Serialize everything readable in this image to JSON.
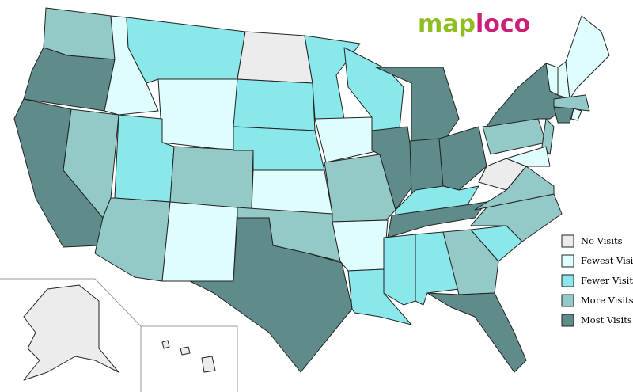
{
  "logo": {
    "part1": "map",
    "part2": "loco"
  },
  "legend": {
    "items": [
      {
        "label": "No Visits",
        "color": "#ececec"
      },
      {
        "label": "Fewest Visits",
        "color": "#e0fdfd"
      },
      {
        "label": "Fewer Visits",
        "color": "#8ae8ea"
      },
      {
        "label": "More Visits",
        "color": "#93cac8"
      },
      {
        "label": "Most Visits",
        "color": "#5f8c8b"
      }
    ]
  }
}
